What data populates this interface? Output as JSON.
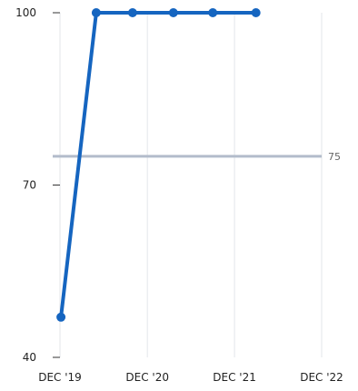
{
  "chart_data": {
    "type": "line",
    "title": "",
    "xlabel": "",
    "ylabel": "",
    "x_ticks": [
      "DEC '19",
      "DEC '20",
      "DEC '21",
      "DEC '22"
    ],
    "y_ticks": [
      40,
      70,
      100
    ],
    "ylim": [
      40,
      100
    ],
    "grid": "vertical",
    "reference_line": {
      "value": 75,
      "label": "75",
      "color": "#b3bccb"
    },
    "series": [
      {
        "color": "#1565c0",
        "points": [
          {
            "x": "2019-12-05",
            "y": 47
          },
          {
            "x": "2020-05-01",
            "y": 100
          },
          {
            "x": "2020-09-30",
            "y": 100
          },
          {
            "x": "2021-03-20",
            "y": 100
          },
          {
            "x": "2021-09-01",
            "y": 100
          },
          {
            "x": "2022-03-01",
            "y": 100
          }
        ]
      }
    ]
  }
}
